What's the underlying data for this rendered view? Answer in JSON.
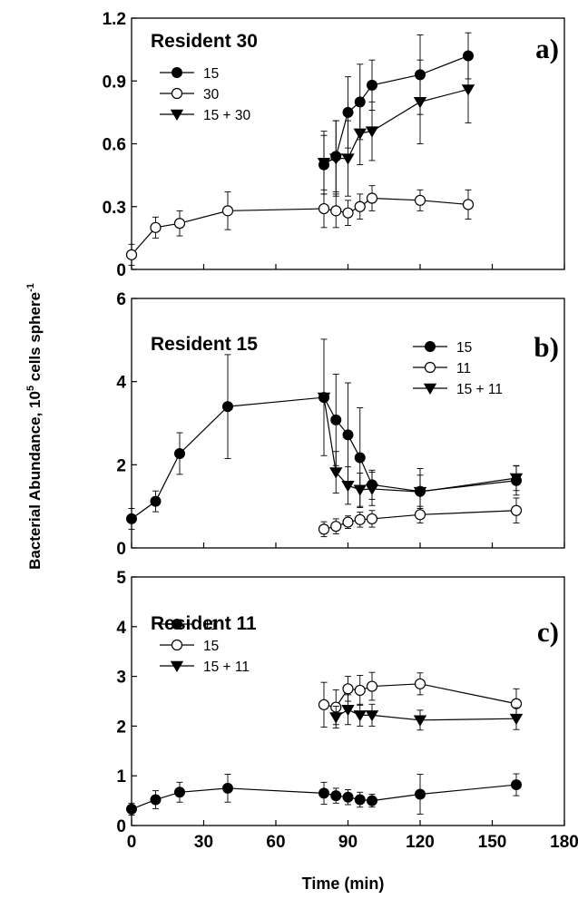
{
  "figure": {
    "ylabel": "Bacterial Abundance,  10",
    "ylabel_exp": "5",
    "ylabel_rest": " cells sphere",
    "ylabel_exp2": "-1",
    "xlabel": "Time (min)"
  },
  "chart_data": [
    {
      "type": "line",
      "title": "Resident 30",
      "panel_label": "a)",
      "xlim": [
        0,
        180
      ],
      "ylim": [
        0,
        1.2
      ],
      "yticks": [
        0,
        0.3,
        0.6,
        0.9,
        1.2
      ],
      "ytick_labels": [
        "0",
        "0.3",
        "0.6",
        "0.9",
        "1.2"
      ],
      "xticks": [
        0,
        30,
        60,
        90,
        120,
        150,
        180
      ],
      "xtick_labels": [],
      "legend_position": "upper-left",
      "series": [
        {
          "name": "15",
          "marker": "filled-circle",
          "x": [
            80,
            85,
            90,
            95,
            100,
            120,
            140
          ],
          "y": [
            0.5,
            0.54,
            0.75,
            0.8,
            0.88,
            0.93,
            1.02
          ],
          "err": [
            0.14,
            0.17,
            0.17,
            0.18,
            0.12,
            0.19,
            0.11
          ]
        },
        {
          "name": "30",
          "marker": "open-circle",
          "x": [
            0,
            10,
            20,
            40,
            80,
            85,
            90,
            95,
            100,
            120,
            140
          ],
          "y": [
            0.07,
            0.2,
            0.22,
            0.28,
            0.29,
            0.28,
            0.27,
            0.3,
            0.34,
            0.33,
            0.31
          ],
          "err": [
            0.05,
            0.05,
            0.06,
            0.09,
            0.09,
            0.08,
            0.06,
            0.06,
            0.06,
            0.05,
            0.07
          ]
        },
        {
          "name": "15 + 30",
          "marker": "filled-triangle",
          "x": [
            80,
            85,
            90,
            95,
            100,
            120,
            140
          ],
          "y": [
            0.51,
            0.53,
            0.53,
            0.65,
            0.66,
            0.8,
            0.86
          ],
          "err": [
            0.15,
            0.18,
            0.18,
            0.15,
            0.14,
            0.2,
            0.16
          ]
        }
      ]
    },
    {
      "type": "line",
      "title": "Resident 15",
      "panel_label": "b)",
      "xlim": [
        0,
        180
      ],
      "ylim": [
        0,
        6
      ],
      "yticks": [
        0,
        2,
        4,
        6
      ],
      "ytick_labels": [
        "0",
        "2",
        "4",
        "6"
      ],
      "xticks": [
        0,
        30,
        60,
        90,
        120,
        150,
        180
      ],
      "xtick_labels": [],
      "legend_position": "upper-right",
      "series": [
        {
          "name": "15",
          "marker": "filled-circle",
          "x": [
            0,
            10,
            20,
            40,
            80,
            85,
            90,
            95,
            100,
            120,
            160
          ],
          "y": [
            0.7,
            1.12,
            2.27,
            3.4,
            3.62,
            3.08,
            2.72,
            2.17,
            1.52,
            1.36,
            1.62
          ],
          "err": [
            0.25,
            0.25,
            0.5,
            1.25,
            1.4,
            1.1,
            1.25,
            1.2,
            0.35,
            0.55,
            0.35
          ]
        },
        {
          "name": "11",
          "marker": "open-circle",
          "x": [
            80,
            85,
            90,
            95,
            100,
            120,
            160
          ],
          "y": [
            0.45,
            0.52,
            0.62,
            0.68,
            0.7,
            0.8,
            0.9
          ],
          "err": [
            0.18,
            0.18,
            0.15,
            0.18,
            0.2,
            0.2,
            0.3
          ]
        },
        {
          "name": "15 + 11",
          "marker": "filled-triangle",
          "x": [
            80,
            85,
            90,
            95,
            100,
            120,
            160
          ],
          "y": [
            3.62,
            1.82,
            1.5,
            1.4,
            1.42,
            1.35,
            1.68
          ],
          "err": [
            0.0,
            0.5,
            0.45,
            0.4,
            0.4,
            0.4,
            0.3
          ]
        }
      ]
    },
    {
      "type": "line",
      "title": "Resident 11",
      "panel_label": "c)",
      "xlim": [
        0,
        180
      ],
      "ylim": [
        0,
        5
      ],
      "yticks": [
        0,
        1,
        2,
        3,
        4,
        5
      ],
      "ytick_labels": [
        "0",
        "1",
        "2",
        "3",
        "4",
        "5"
      ],
      "xticks": [
        0,
        30,
        60,
        90,
        120,
        150,
        180
      ],
      "xtick_labels": [
        "0",
        "30",
        "60",
        "90",
        "120",
        "150",
        "180"
      ],
      "legend_position": "upper-left",
      "series": [
        {
          "name": "11",
          "marker": "filled-circle",
          "x": [
            0,
            10,
            20,
            40,
            80,
            85,
            90,
            95,
            100,
            120,
            160
          ],
          "y": [
            0.33,
            0.52,
            0.67,
            0.75,
            0.65,
            0.6,
            0.57,
            0.52,
            0.5,
            0.63,
            0.82
          ],
          "err": [
            0.12,
            0.18,
            0.2,
            0.28,
            0.22,
            0.15,
            0.15,
            0.15,
            0.13,
            0.4,
            0.22
          ]
        },
        {
          "name": "15",
          "marker": "open-circle",
          "x": [
            80,
            85,
            90,
            95,
            100,
            120,
            160
          ],
          "y": [
            2.43,
            2.38,
            2.75,
            2.72,
            2.8,
            2.85,
            2.45
          ],
          "err": [
            0.45,
            0.35,
            0.25,
            0.3,
            0.28,
            0.22,
            0.3
          ]
        },
        {
          "name": "15 + 11",
          "marker": "filled-triangle",
          "x": [
            85,
            90,
            95,
            100,
            120,
            160
          ],
          "y": [
            2.18,
            2.33,
            2.22,
            2.22,
            2.12,
            2.15
          ],
          "err": [
            0.22,
            0.3,
            0.22,
            0.22,
            0.2,
            0.22
          ]
        }
      ]
    }
  ]
}
